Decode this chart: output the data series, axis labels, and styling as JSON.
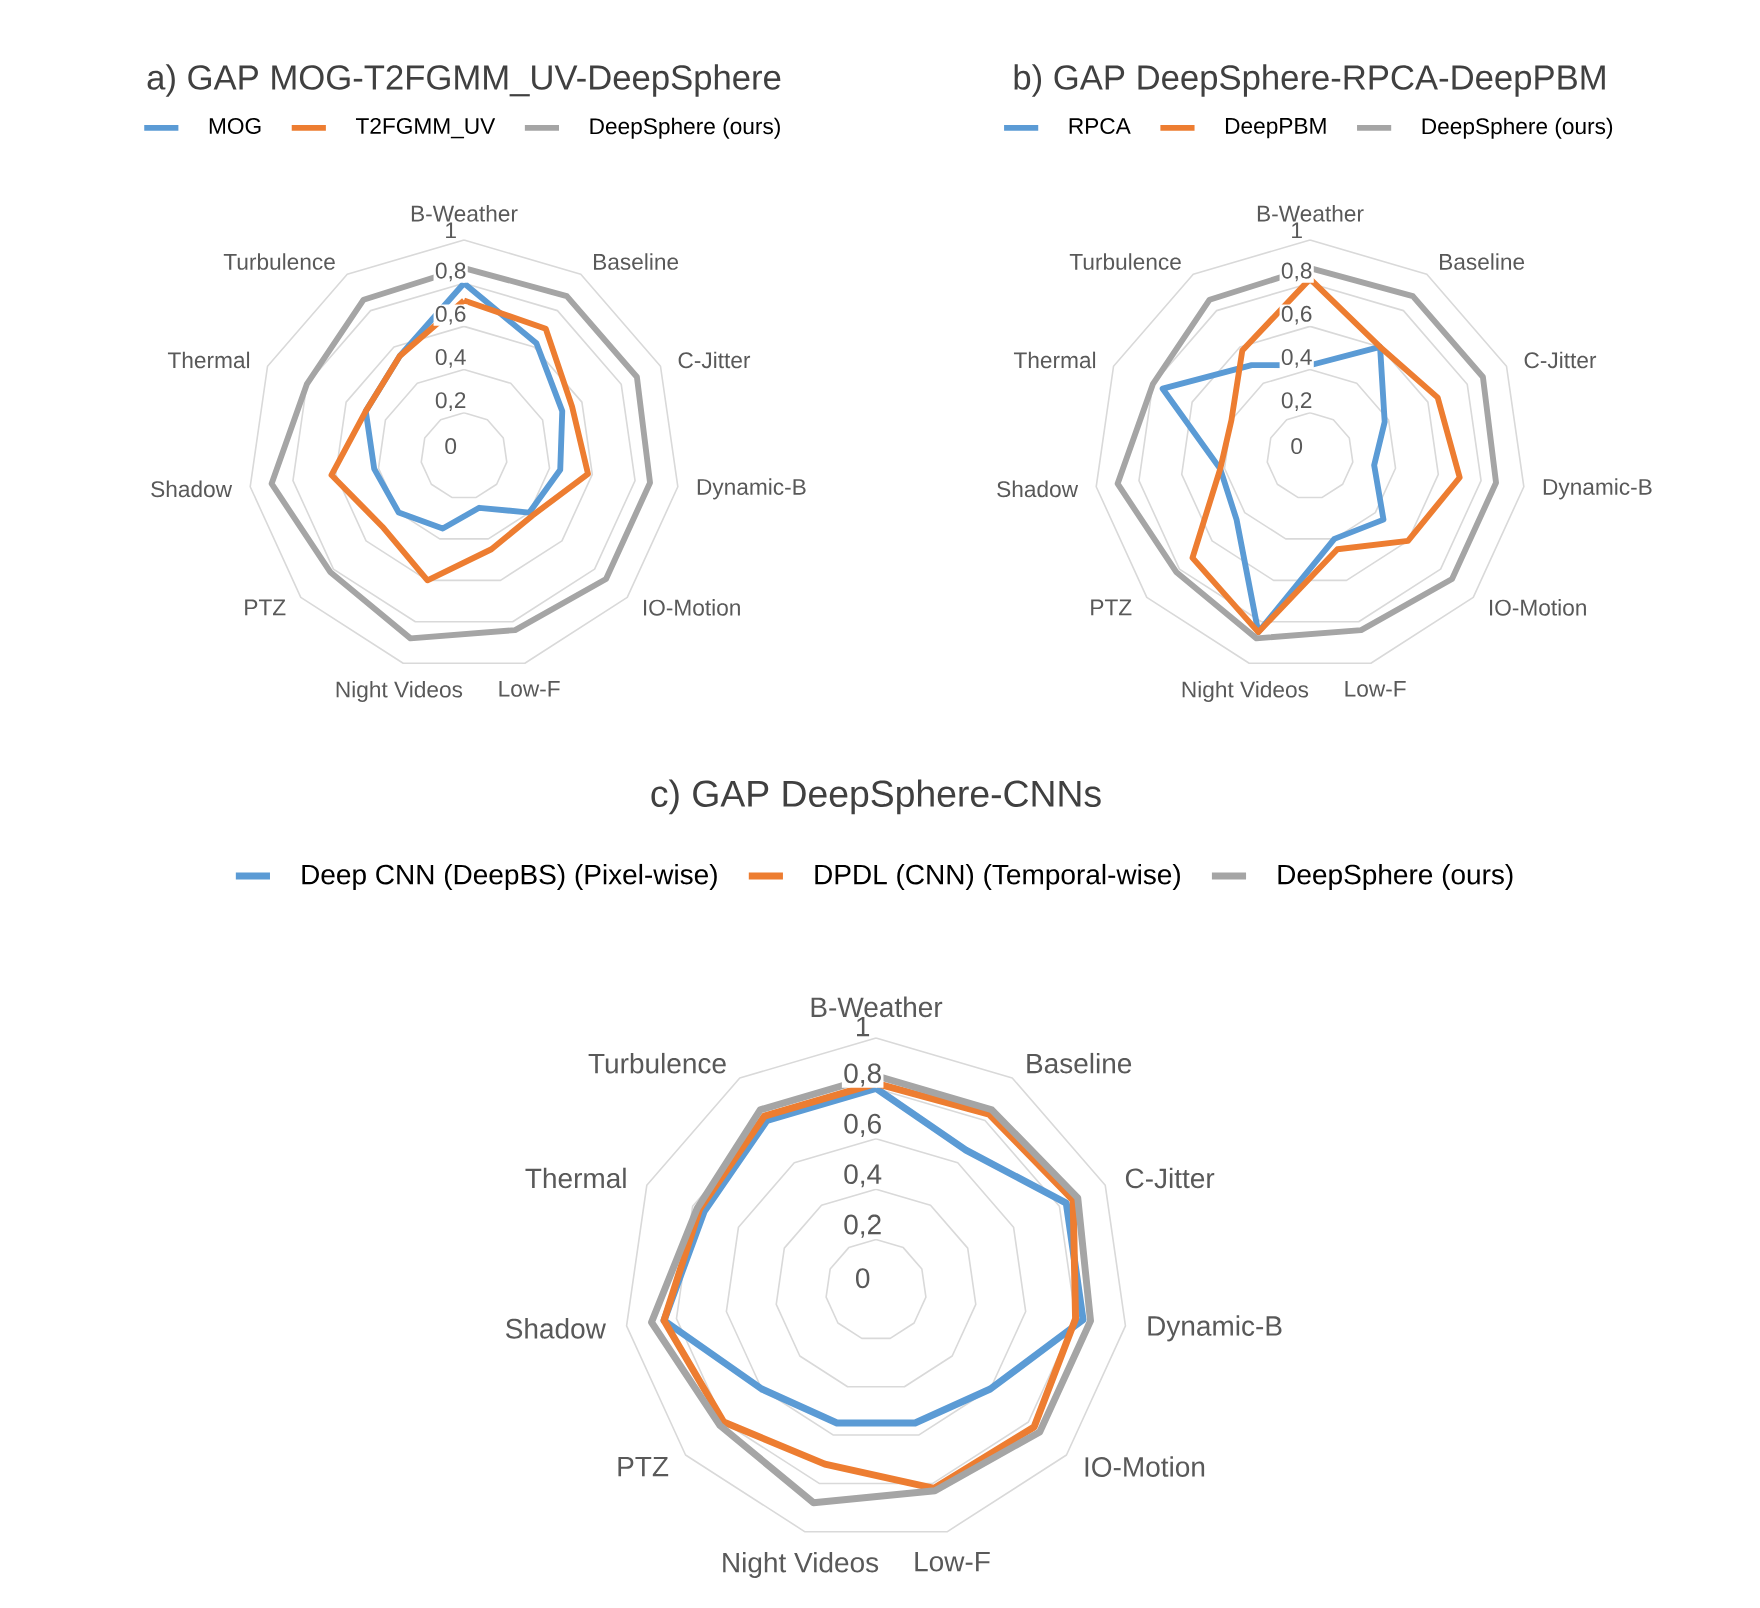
{
  "chart_data": [
    {
      "type": "radar",
      "title": "a) GAP MOG-T2FGMM_UV-DeepSphere",
      "categories": [
        "B-Weather",
        "Baseline",
        "C-Jitter",
        "Dynamic-B",
        "IO-Motion",
        "Low-F",
        "Night Videos",
        "PTZ",
        "Shadow",
        "Thermal",
        "Turbulence"
      ],
      "series": [
        {
          "name": "MOG",
          "color": "#5b9bd5",
          "values": [
            0.8,
            0.62,
            0.5,
            0.45,
            0.4,
            0.25,
            0.35,
            0.4,
            0.42,
            0.5,
            0.55
          ]
        },
        {
          "name": "T2FGMM_UV",
          "color": "#ed7d31",
          "values": [
            0.72,
            0.7,
            0.55,
            0.58,
            0.42,
            0.45,
            0.6,
            0.5,
            0.62,
            0.5,
            0.55
          ]
        },
        {
          "name": "DeepSphere (ours)",
          "color": "#a5a5a5",
          "values": [
            0.87,
            0.88,
            0.88,
            0.87,
            0.87,
            0.84,
            0.88,
            0.82,
            0.9,
            0.8,
            0.86
          ]
        }
      ],
      "ylim": [
        0,
        1
      ],
      "yticks": [
        0,
        {
          "value": 0.2,
          "label": "0,2"
        },
        {
          "value": 0.4,
          "label": "0,4"
        },
        {
          "value": 0.6,
          "label": "0,6"
        },
        {
          "value": 0.8,
          "label": "0,8"
        },
        1
      ],
      "grid": true,
      "legend": "top"
    },
    {
      "type": "radar",
      "title": "b) GAP DeepSphere-RPCA-DeepPBM",
      "categories": [
        "B-Weather",
        "Baseline",
        "C-Jitter",
        "Dynamic-B",
        "IO-Motion",
        "Low-F",
        "Night Videos",
        "PTZ",
        "Shadow",
        "Thermal",
        "Turbulence"
      ],
      "series": [
        {
          "name": "RPCA",
          "color": "#5b9bd5",
          "values": [
            0.42,
            0.6,
            0.38,
            0.3,
            0.45,
            0.4,
            0.85,
            0.45,
            0.42,
            0.75,
            0.5
          ]
        },
        {
          "name": "DeepPBM",
          "color": "#ed7d31",
          "values": [
            0.82,
            0.6,
            0.65,
            0.7,
            0.6,
            0.45,
            0.85,
            0.72,
            0.42,
            0.4,
            0.58
          ]
        },
        {
          "name": "DeepSphere (ours)",
          "color": "#a5a5a5",
          "values": [
            0.87,
            0.88,
            0.88,
            0.87,
            0.87,
            0.84,
            0.88,
            0.82,
            0.9,
            0.8,
            0.86
          ]
        }
      ],
      "ylim": [
        0,
        1
      ],
      "yticks": [
        0,
        {
          "value": 0.2,
          "label": "0,2"
        },
        {
          "value": 0.4,
          "label": "0,4"
        },
        {
          "value": 0.6,
          "label": "0,6"
        },
        {
          "value": 0.8,
          "label": "0,8"
        },
        1
      ],
      "grid": true,
      "legend": "top"
    },
    {
      "type": "radar",
      "title": "c) GAP DeepSphere-CNNs",
      "categories": [
        "B-Weather",
        "Baseline",
        "C-Jitter",
        "Dynamic-B",
        "IO-Motion",
        "Low-F",
        "Night Videos",
        "PTZ",
        "Shadow",
        "Thermal",
        "Turbulence"
      ],
      "series": [
        {
          "name": "Deep CNN (DeepBS) (Pixel-wise)",
          "color": "#5b9bd5",
          "values": [
            0.8,
            0.66,
            0.83,
            0.83,
            0.6,
            0.55,
            0.55,
            0.6,
            0.85,
            0.75,
            0.8
          ]
        },
        {
          "name": "DPDL (CNN) (Temporal-wise)",
          "color": "#ed7d31",
          "values": [
            0.82,
            0.83,
            0.86,
            0.8,
            0.83,
            0.82,
            0.72,
            0.8,
            0.85,
            0.77,
            0.82
          ]
        },
        {
          "name": "DeepSphere (ours)",
          "color": "#a5a5a5",
          "values": [
            0.85,
            0.85,
            0.88,
            0.86,
            0.86,
            0.83,
            0.88,
            0.82,
            0.9,
            0.78,
            0.85
          ]
        }
      ],
      "ylim": [
        0,
        1
      ],
      "yticks": [
        0,
        {
          "value": 0.2,
          "label": "0,2"
        },
        {
          "value": 0.4,
          "label": "0,4"
        },
        {
          "value": 0.6,
          "label": "0,6"
        },
        {
          "value": 0.8,
          "label": "0,8"
        },
        1
      ],
      "grid": true,
      "legend": "top"
    }
  ]
}
